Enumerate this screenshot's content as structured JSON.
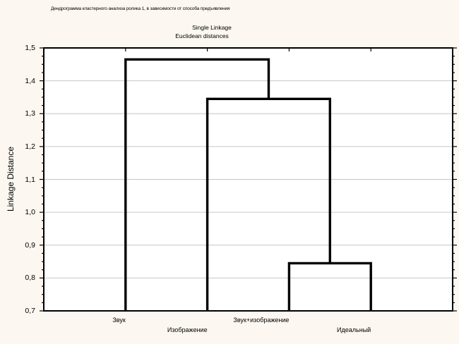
{
  "header": {
    "title": "Дендрограмма кластерного анализа ролика 1, в зависимости от способа предъявления",
    "subtitle1": "Single Linkage",
    "subtitle2": "Euclidean distances"
  },
  "y_axis": {
    "label": "Linkage Distance",
    "tick_labels": [
      "1,5",
      "1,4",
      "1,3",
      "1,2",
      "1,1",
      "1,0",
      "0,9",
      "0,8",
      "0,7"
    ],
    "min": 0.7,
    "max": 1.5,
    "major_step": 0.1,
    "minor_step": 0.025
  },
  "x_axis": {
    "labels": [
      "Звук",
      "Изображение",
      "Звук+изображение",
      "Идеальный"
    ]
  },
  "chart_data": {
    "type": "dendrogram",
    "title": "Дендрограмма кластерного анализа ролика 1, в зависимости от способа предъявления",
    "method": "Single Linkage",
    "distance_metric": "Euclidean distances",
    "ylabel": "Linkage Distance",
    "ylim": [
      0.7,
      1.5
    ],
    "grid": true,
    "legend": false,
    "baseline": 0.7,
    "leaves": [
      "Звук",
      "Изображение",
      "Звук+изображение",
      "Идеальный"
    ],
    "leaf_positions": [
      0.2,
      0.4,
      0.6,
      0.8
    ],
    "merges": [
      {
        "id": "M0",
        "left": "L2",
        "right": "L3",
        "distance": 0.845,
        "joins": [
          "Звук+изображение",
          "Идеальный"
        ]
      },
      {
        "id": "M1",
        "left": "L1",
        "right": "M0",
        "distance": 1.345,
        "joins": [
          "Изображение",
          "[Звук+изображение, Идеальный]"
        ]
      },
      {
        "id": "M2",
        "left": "L0",
        "right": "M1",
        "distance": 1.465,
        "joins": [
          "Звук",
          "[Изображение, Звук+изображение, Идеальный]"
        ]
      }
    ]
  },
  "colors": {
    "page_bg": "#fdf7f1",
    "plot_bg": "#ffffff",
    "line": "#000000",
    "grid": "#c6c6c6",
    "text": "#000000"
  }
}
